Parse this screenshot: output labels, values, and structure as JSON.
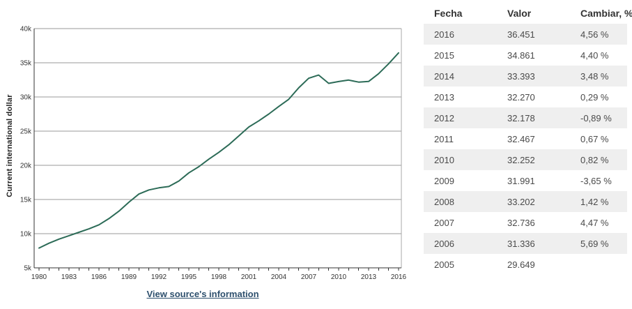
{
  "chart": {
    "y_axis_label": "Current international dollar",
    "source_link_label": "View source's information"
  },
  "chart_data": {
    "type": "line",
    "title": "",
    "xlabel": "",
    "ylabel": "Current international dollar",
    "units": "thousand current international dollars",
    "grid": true,
    "legend_position": "none",
    "ylim": [
      5,
      40
    ],
    "y_ticks": [
      "5k",
      "10k",
      "15k",
      "20k",
      "25k",
      "30k",
      "35k",
      "40k"
    ],
    "x_tick_labels": [
      "1980",
      "1983",
      "1986",
      "1989",
      "1992",
      "1995",
      "1998",
      "2001",
      "2004",
      "2007",
      "2010",
      "2013",
      "2016"
    ],
    "x": [
      1980,
      1981,
      1982,
      1983,
      1984,
      1985,
      1986,
      1987,
      1988,
      1989,
      1990,
      1991,
      1992,
      1993,
      1994,
      1995,
      1996,
      1997,
      1998,
      1999,
      2000,
      2001,
      2002,
      2003,
      2004,
      2005,
      2006,
      2007,
      2008,
      2009,
      2010,
      2011,
      2012,
      2013,
      2014,
      2015,
      2016
    ],
    "series": [
      {
        "name": "Current international dollar",
        "values": [
          7.9,
          8.6,
          9.2,
          9.7,
          10.2,
          10.7,
          11.3,
          12.2,
          13.3,
          14.6,
          15.8,
          16.4,
          16.7,
          16.9,
          17.7,
          18.9,
          19.8,
          20.9,
          21.9,
          23.0,
          24.3,
          25.6,
          26.5,
          27.5,
          28.6,
          29.649,
          31.336,
          32.736,
          33.202,
          31.991,
          32.252,
          32.467,
          32.178,
          32.27,
          33.393,
          34.861,
          36.451
        ]
      }
    ],
    "colors": {
      "line": "#2c6b57",
      "gridline": "#999999",
      "axis": "#333333",
      "right_border": "#aaaaaa"
    }
  },
  "table": {
    "headers": [
      "Fecha",
      "Valor",
      "Cambiar, %"
    ],
    "rows": [
      {
        "fecha": "2016",
        "valor": "36.451",
        "cambiar": "4,56 %"
      },
      {
        "fecha": "2015",
        "valor": "34.861",
        "cambiar": "4,40 %"
      },
      {
        "fecha": "2014",
        "valor": "33.393",
        "cambiar": "3,48 %"
      },
      {
        "fecha": "2013",
        "valor": "32.270",
        "cambiar": "0,29 %"
      },
      {
        "fecha": "2012",
        "valor": "32.178",
        "cambiar": "-0,89 %"
      },
      {
        "fecha": "2011",
        "valor": "32.467",
        "cambiar": "0,67 %"
      },
      {
        "fecha": "2010",
        "valor": "32.252",
        "cambiar": "0,82 %"
      },
      {
        "fecha": "2009",
        "valor": "31.991",
        "cambiar": "-3,65 %"
      },
      {
        "fecha": "2008",
        "valor": "33.202",
        "cambiar": "1,42 %"
      },
      {
        "fecha": "2007",
        "valor": "32.736",
        "cambiar": "4,47 %"
      },
      {
        "fecha": "2006",
        "valor": "31.336",
        "cambiar": "5,69 %"
      },
      {
        "fecha": "2005",
        "valor": "29.649",
        "cambiar": ""
      }
    ]
  }
}
